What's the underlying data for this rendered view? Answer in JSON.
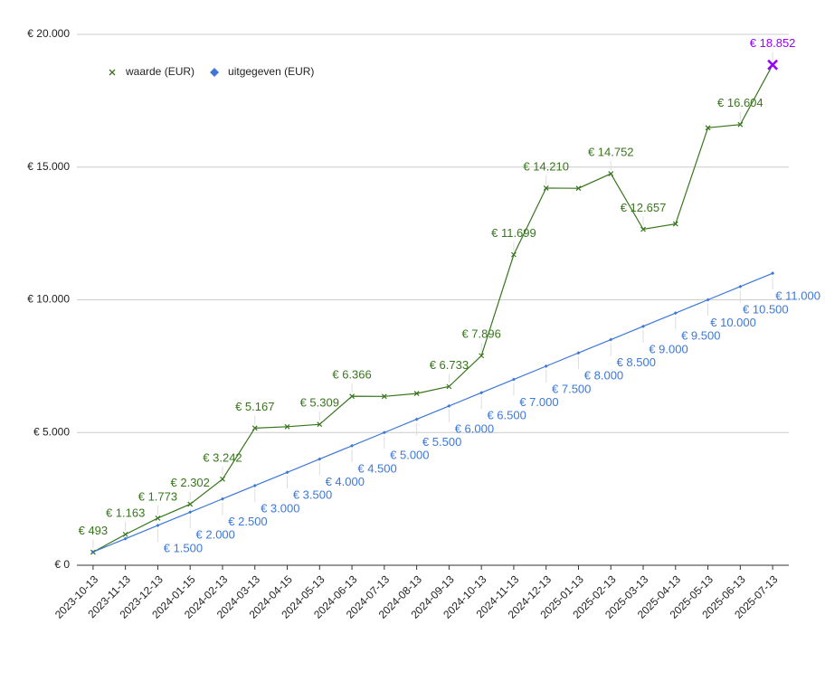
{
  "chart_data": {
    "type": "line",
    "categories": [
      "2023-10-13",
      "2023-11-13",
      "2023-12-13",
      "2024-01-15",
      "2024-02-13",
      "2024-03-13",
      "2024-04-15",
      "2024-05-13",
      "2024-06-13",
      "2024-07-13",
      "2024-08-13",
      "2024-09-13",
      "2024-10-13",
      "2024-11-13",
      "2024-12-13",
      "2025-01-13",
      "2025-02-13",
      "2025-03-13",
      "2025-04-13",
      "2025-05-13",
      "2025-06-13",
      "2025-07-13"
    ],
    "series": [
      {
        "name": "waarde (EUR)",
        "color": "#38761d",
        "marker": "x",
        "values": [
          493,
          1163,
          1773,
          2302,
          3242,
          5167,
          5220,
          5309,
          6366,
          6360,
          6470,
          6733,
          7896,
          11699,
          14210,
          14200,
          14752,
          12657,
          12860,
          16480,
          16604,
          18852
        ],
        "value_labels": [
          "€ 493",
          "€ 1.163",
          "€ 1.773",
          "€ 2.302",
          "€ 3.242",
          "€ 5.167",
          null,
          "€ 5.309",
          "€ 6.366",
          null,
          null,
          "€ 6.733",
          "€ 7.896",
          "€ 11.699",
          "€ 14.210",
          null,
          "€ 14.752",
          "€ 12.657",
          null,
          null,
          "€ 16.604",
          "€ 18.852"
        ],
        "highlight": {
          "index": 21,
          "color": "#9900ff"
        }
      },
      {
        "name": "uitgegeven (EUR)",
        "color": "#3c78d8",
        "marker": "diamond",
        "values": [
          500,
          1000,
          1500,
          2000,
          2500,
          3000,
          3500,
          4000,
          4500,
          5000,
          5500,
          6000,
          6500,
          7000,
          7500,
          8000,
          8500,
          9000,
          9500,
          10000,
          10500,
          11000
        ],
        "value_labels": [
          null,
          null,
          "€ 1.500",
          "€ 2.000",
          "€ 2.500",
          "€ 3.000",
          "€ 3.500",
          "€ 4.000",
          "€ 4.500",
          "€ 5.000",
          "€ 5.500",
          "€ 6.000",
          "€ 6.500",
          "€ 7.000",
          "€ 7.500",
          "€ 8.000",
          "€ 8.500",
          "€ 9.000",
          "€ 9.500",
          "€ 10.000",
          "€ 10.500",
          "€ 11.000"
        ]
      }
    ],
    "ylim": [
      0,
      20000
    ],
    "yticks": [
      {
        "value": 0,
        "label": "€ 0"
      },
      {
        "value": 5000,
        "label": "€ 5.000"
      },
      {
        "value": 10000,
        "label": "€ 10.000"
      },
      {
        "value": 15000,
        "label": "€ 15.000"
      },
      {
        "value": 20000,
        "label": "€ 20.000"
      }
    ],
    "grid": true,
    "legend": "top-left"
  }
}
